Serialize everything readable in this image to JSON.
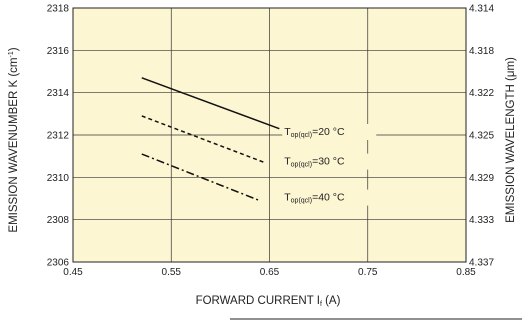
{
  "chart_data": {
    "type": "line",
    "xlabel": {
      "main": "FORWARD CURRENT I",
      "sub": "f",
      "unit": " (A)"
    },
    "ylabel_left": {
      "main": "EMISSION WAVENUMBER K (cm",
      "sup": "-1",
      "end": ")"
    },
    "ylabel_right": {
      "main": "EMISSION WAVELENGTH (μm)"
    },
    "xlim": [
      0.45,
      0.85
    ],
    "ylim": [
      2306,
      2318
    ],
    "x_ticks": [
      0.45,
      0.55,
      0.65,
      0.75,
      0.85
    ],
    "x_tick_labels": [
      "0.45",
      "0.55",
      "0.65",
      "0.75",
      "0.85"
    ],
    "y_ticks": [
      2306,
      2308,
      2310,
      2312,
      2314,
      2316,
      2318
    ],
    "y_tick_labels": [
      "2306",
      "2308",
      "2310",
      "2312",
      "2314",
      "2316",
      "2318"
    ],
    "y2_ticks": [
      2318,
      2316,
      2314,
      2312,
      2310,
      2308,
      2306
    ],
    "y2_tick_labels": [
      "4.314",
      "4.318",
      "4.322",
      "4.325",
      "4.329",
      "4.333",
      "4.337"
    ],
    "grid": true,
    "background_color": "#fdf6d3",
    "series": [
      {
        "label_main": "T",
        "label_sub": "op(qcl)",
        "label_rest": "=20 °C",
        "style": "solid",
        "x": [
          0.52,
          0.66
        ],
        "y": [
          2314.7,
          2312.3
        ],
        "label_at": [
          0.665,
          2312.0
        ]
      },
      {
        "label_main": "T",
        "label_sub": "op(qcl)",
        "label_rest": "=30 °C",
        "style": "dashed",
        "x": [
          0.52,
          0.645
        ],
        "y": [
          2312.9,
          2310.7
        ],
        "label_at": [
          0.665,
          2310.6
        ]
      },
      {
        "label_main": "T",
        "label_sub": "op(qcl)",
        "label_rest": "=40 °C",
        "style": "dashdot",
        "x": [
          0.52,
          0.64
        ],
        "y": [
          2311.1,
          2308.9
        ],
        "label_at": [
          0.665,
          2308.9
        ]
      }
    ]
  }
}
